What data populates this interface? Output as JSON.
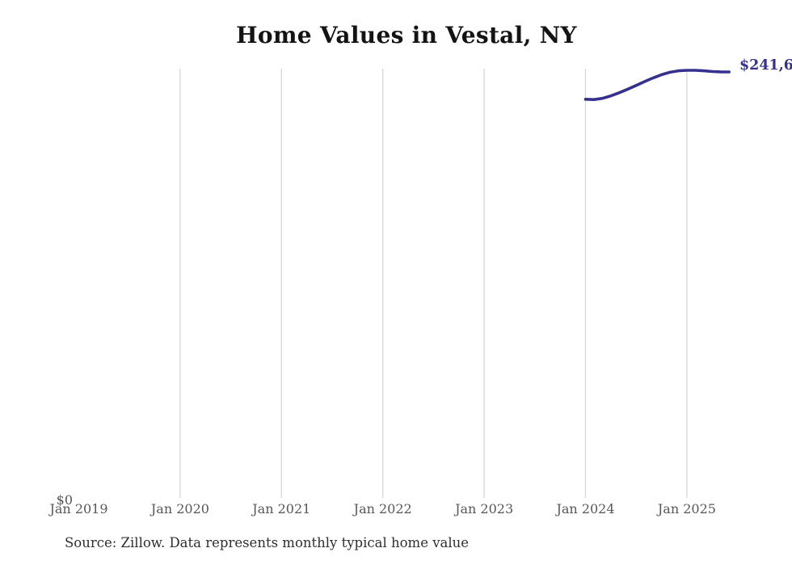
{
  "chart_data": {
    "type": "line",
    "title": "Home Values in Vestal, NY",
    "source_note": "Source: Zillow. Data represents monthly typical home value",
    "end_label": "$241,6",
    "y_zero_label": "$0",
    "ylim": [
      0,
      243500
    ],
    "grid": "vertical-only",
    "legend": "none",
    "x_ticks": [
      {
        "label": "Jan 2019",
        "month_offset": 0
      },
      {
        "label": "Jan 2020",
        "month_offset": 12
      },
      {
        "label": "Jan 2021",
        "month_offset": 24
      },
      {
        "label": "Jan 2022",
        "month_offset": 36
      },
      {
        "label": "Jan 2023",
        "month_offset": 48
      },
      {
        "label": "Jan 2024",
        "month_offset": 60
      },
      {
        "label": "Jan 2025",
        "month_offset": 72
      }
    ],
    "x_gridline_month_offsets": [
      12,
      24,
      36,
      48,
      60,
      72
    ],
    "series": [
      {
        "name": "Monthly typical home value",
        "x": [
          "Jan 2024",
          "Feb 2024",
          "Mar 2024",
          "Apr 2024",
          "May 2024",
          "Jun 2024",
          "Jul 2024",
          "Aug 2024",
          "Sep 2024",
          "Oct 2024",
          "Nov 2024",
          "Dec 2024",
          "Jan 2025",
          "Feb 2025",
          "Mar 2025",
          "Apr 2025",
          "May 2025",
          "Jun 2025"
        ],
        "month_offsets": [
          60,
          61,
          62,
          63,
          64,
          65,
          66,
          67,
          68,
          69,
          70,
          71,
          72,
          73,
          74,
          75,
          76,
          77
        ],
        "values": [
          226200,
          226000,
          226700,
          228100,
          229900,
          231900,
          234000,
          236200,
          238300,
          240100,
          241500,
          242300,
          242600,
          242600,
          242300,
          241900,
          241700,
          241650
        ]
      }
    ],
    "colors": {
      "line": "#36308e",
      "end_label": "#36308e",
      "gridline": "#d9d9d9",
      "tick_label": "#575757",
      "title": "#141414",
      "source": "#2f2f2f"
    }
  }
}
